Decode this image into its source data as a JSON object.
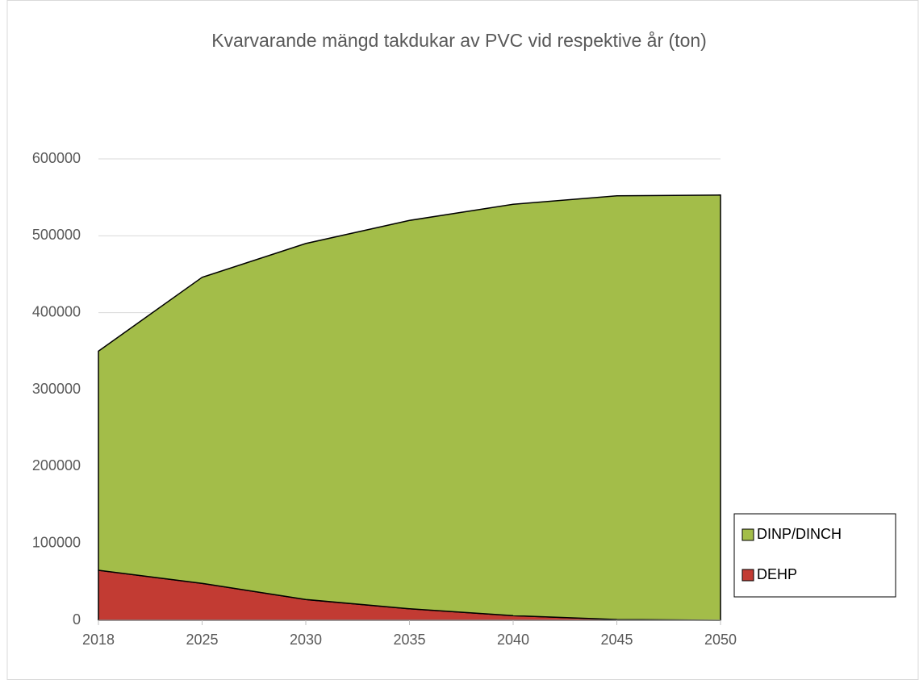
{
  "chart_data": {
    "type": "stacked_area",
    "title": "Kvarvarande mängd takdukar av PVC vid respektive år (ton)",
    "categories": [
      "2018",
      "2025",
      "2030",
      "2035",
      "2040",
      "2045",
      "2050"
    ],
    "series": [
      {
        "name": "DEHP",
        "color": "#c23b33",
        "values": [
          65000,
          48000,
          27000,
          15000,
          6000,
          1000,
          0
        ]
      },
      {
        "name": "DINP/DINCH",
        "color": "#a3bd49",
        "values": [
          285000,
          398000,
          463000,
          505000,
          535000,
          551000,
          553000
        ]
      }
    ],
    "ylim": [
      0,
      600000
    ],
    "yticks": [
      0,
      100000,
      200000,
      300000,
      400000,
      500000,
      600000
    ],
    "grid": true,
    "legend": "right"
  }
}
